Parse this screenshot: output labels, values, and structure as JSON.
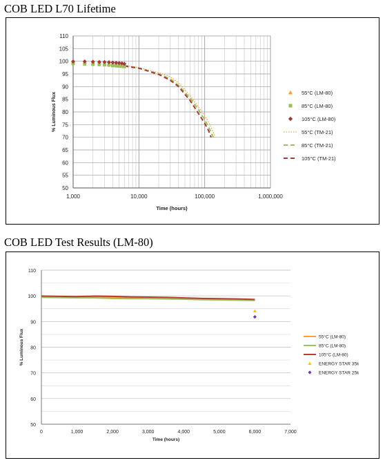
{
  "chart_data": [
    {
      "type": "scatter",
      "title": "COB LED L70 Lifetime",
      "xlabel": "Time (hours)",
      "ylabel": "% Luminous Flux",
      "xscale": "log",
      "xlim": [
        1000,
        1000000
      ],
      "ylim": [
        50,
        110
      ],
      "xticks": [
        "1,000",
        "10,000",
        "100,000",
        "1,000,000"
      ],
      "yticks": [
        "50",
        "55",
        "60",
        "65",
        "70",
        "75",
        "80",
        "85",
        "90",
        "95",
        "100",
        "105",
        "110"
      ],
      "grid": true,
      "legend": "right",
      "series": [
        {
          "name": "55°C (LM-80)",
          "marker": "triangle",
          "style": "marker",
          "color": "#f4a23c",
          "x": [
            1000,
            1500,
            2000,
            2500,
            3000,
            3500,
            4000,
            4500,
            5000,
            5500,
            6000
          ],
          "y": [
            99.6,
            99.5,
            99.4,
            99.2,
            99.1,
            99.0,
            98.9,
            98.7,
            98.6,
            98.5,
            98.4
          ]
        },
        {
          "name": "85°C (LM-80)",
          "marker": "square",
          "style": "marker",
          "color": "#9bc15c",
          "x": [
            1000,
            1500,
            2000,
            2500,
            3000,
            3500,
            4000,
            4500,
            5000,
            5500,
            6000
          ],
          "y": [
            99.1,
            98.9,
            98.8,
            98.7,
            98.6,
            98.5,
            98.3,
            98.2,
            98.1,
            98.0,
            97.9
          ]
        },
        {
          "name": "105°C (LM-80)",
          "marker": "diamond",
          "style": "marker",
          "color": "#a23a3a",
          "x": [
            1000,
            1500,
            2000,
            2500,
            3000,
            3500,
            4000,
            4500,
            5000,
            5500,
            6000
          ],
          "y": [
            99.9,
            99.9,
            99.8,
            99.7,
            99.7,
            99.6,
            99.5,
            99.4,
            99.3,
            99.2,
            99.0
          ]
        },
        {
          "name": "55°C (TM-21)",
          "style": "dotted",
          "color": "#f4a23c",
          "x": [
            6000,
            10000,
            20000,
            30000,
            40000,
            60000,
            80000,
            100000,
            120000,
            145000
          ],
          "y": [
            98.4,
            97.5,
            95.5,
            93.8,
            91.5,
            86.5,
            82.0,
            78.5,
            75.0,
            70.0
          ]
        },
        {
          "name": "85°C (TM-21)",
          "style": "dashed",
          "color": "#9bc15c",
          "x": [
            6000,
            10000,
            20000,
            30000,
            40000,
            60000,
            80000,
            100000,
            120000,
            135000
          ],
          "y": [
            98.0,
            97.2,
            95.0,
            93.0,
            90.5,
            85.5,
            81.0,
            77.0,
            73.0,
            70.0
          ]
        },
        {
          "name": "105°C (TM-21)",
          "style": "dashed",
          "color": "#a23a3a",
          "x": [
            6000,
            10000,
            20000,
            30000,
            40000,
            60000,
            80000,
            100000,
            115000,
            125000
          ],
          "y": [
            98.2,
            97.3,
            94.8,
            92.5,
            90.0,
            84.5,
            79.5,
            75.5,
            72.5,
            70.0
          ]
        }
      ]
    },
    {
      "type": "line",
      "title": "COB LED Test Results (LM-80)",
      "xlabel": "Time (hours)",
      "ylabel": "% Luminous Flux",
      "xlim": [
        0,
        7000
      ],
      "ylim": [
        50,
        110
      ],
      "xticks": [
        "0",
        "1,000",
        "2,000",
        "3,000",
        "4,000",
        "5,000",
        "6,000",
        "7,000"
      ],
      "yticks": [
        "50",
        "60",
        "70",
        "80",
        "90",
        "100",
        "110"
      ],
      "grid": true,
      "legend": "right",
      "series": [
        {
          "name": "55°C (LM-80)",
          "style": "line",
          "color": "#f4a23c",
          "x": [
            0,
            500,
            1000,
            1500,
            2000,
            2500,
            3000,
            3500,
            4000,
            4500,
            5000,
            5500,
            6000
          ],
          "y": [
            99.8,
            99.6,
            99.5,
            99.5,
            99.4,
            99.3,
            99.2,
            99.1,
            99.0,
            98.8,
            98.7,
            98.6,
            98.5
          ]
        },
        {
          "name": "85°C (LM-80)",
          "style": "line",
          "color": "#9bc15c",
          "x": [
            0,
            500,
            1000,
            1500,
            2000,
            2500,
            3000,
            3500,
            4000,
            4500,
            5000,
            5500,
            6000
          ],
          "y": [
            99.4,
            99.3,
            99.2,
            99.2,
            99.0,
            98.9,
            98.9,
            98.8,
            98.7,
            98.5,
            98.4,
            98.3,
            98.2
          ]
        },
        {
          "name": "105°C (LM-80)",
          "style": "line",
          "color": "#b83c36",
          "x": [
            0,
            500,
            1000,
            1500,
            2000,
            2500,
            3000,
            3500,
            4000,
            4500,
            5000,
            5500,
            6000
          ],
          "y": [
            99.9,
            99.8,
            99.7,
            99.9,
            99.8,
            99.6,
            99.5,
            99.4,
            99.2,
            99.0,
            98.9,
            98.8,
            98.6
          ]
        },
        {
          "name": "ENERGY STAR 35k",
          "style": "marker",
          "marker": "triangle",
          "color": "#f2c80f",
          "x": [
            6000
          ],
          "y": [
            94.1
          ]
        },
        {
          "name": "ENERGY STAR 25k",
          "style": "marker",
          "marker": "diamond",
          "color": "#6b3fa0",
          "x": [
            6000
          ],
          "y": [
            91.8
          ]
        }
      ]
    }
  ]
}
